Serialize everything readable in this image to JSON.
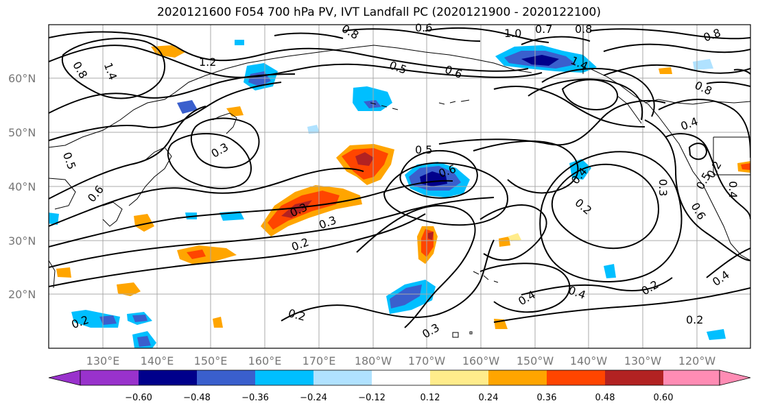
{
  "title": "2020121600 F054 700 hPa PV, IVT Landfall PC (2020121900 - 2020122100)",
  "lat_labels": [
    "60°N",
    "50°N",
    "40°N",
    "30°N",
    "20°N"
  ],
  "lon_labels": [
    "130°E",
    "140°E",
    "150°E",
    "160°E",
    "170°E",
    "180°W",
    "170°W",
    "160°W",
    "150°W",
    "140°W",
    "130°W",
    "120°W"
  ],
  "contour_labels": [
    "0.8",
    "1.2",
    "1.4",
    "0.6",
    "0.8",
    "1.0",
    "0.7",
    "0.8",
    "0.8",
    "0.5",
    "0.6",
    "1.4",
    "0.8",
    "0.4",
    "0.3",
    "0.3",
    "0.5",
    "0.5",
    "0.6",
    "0.6",
    "0.4",
    "0.5",
    "0.6",
    "0.3",
    "0.2",
    "0.3",
    "0.2",
    "0.4",
    "0.2",
    "0.4",
    "0.2",
    "0.3",
    "0.2",
    "0.2",
    "0.4",
    "0.4",
    "0.2"
  ],
  "colorbar": {
    "colors": [
      "#9932cc",
      "#00008b",
      "#3a5fcd",
      "#00bfff",
      "#b0e2ff",
      "#ffffff",
      "#ffec8b",
      "#ffa500",
      "#ff4500",
      "#b22222",
      "#ff8cb4"
    ],
    "ticks": [
      "−0.60",
      "−0.48",
      "−0.36",
      "−0.24",
      "−0.12",
      "0.12",
      "0.24",
      "0.36",
      "0.48",
      "0.60"
    ]
  }
}
